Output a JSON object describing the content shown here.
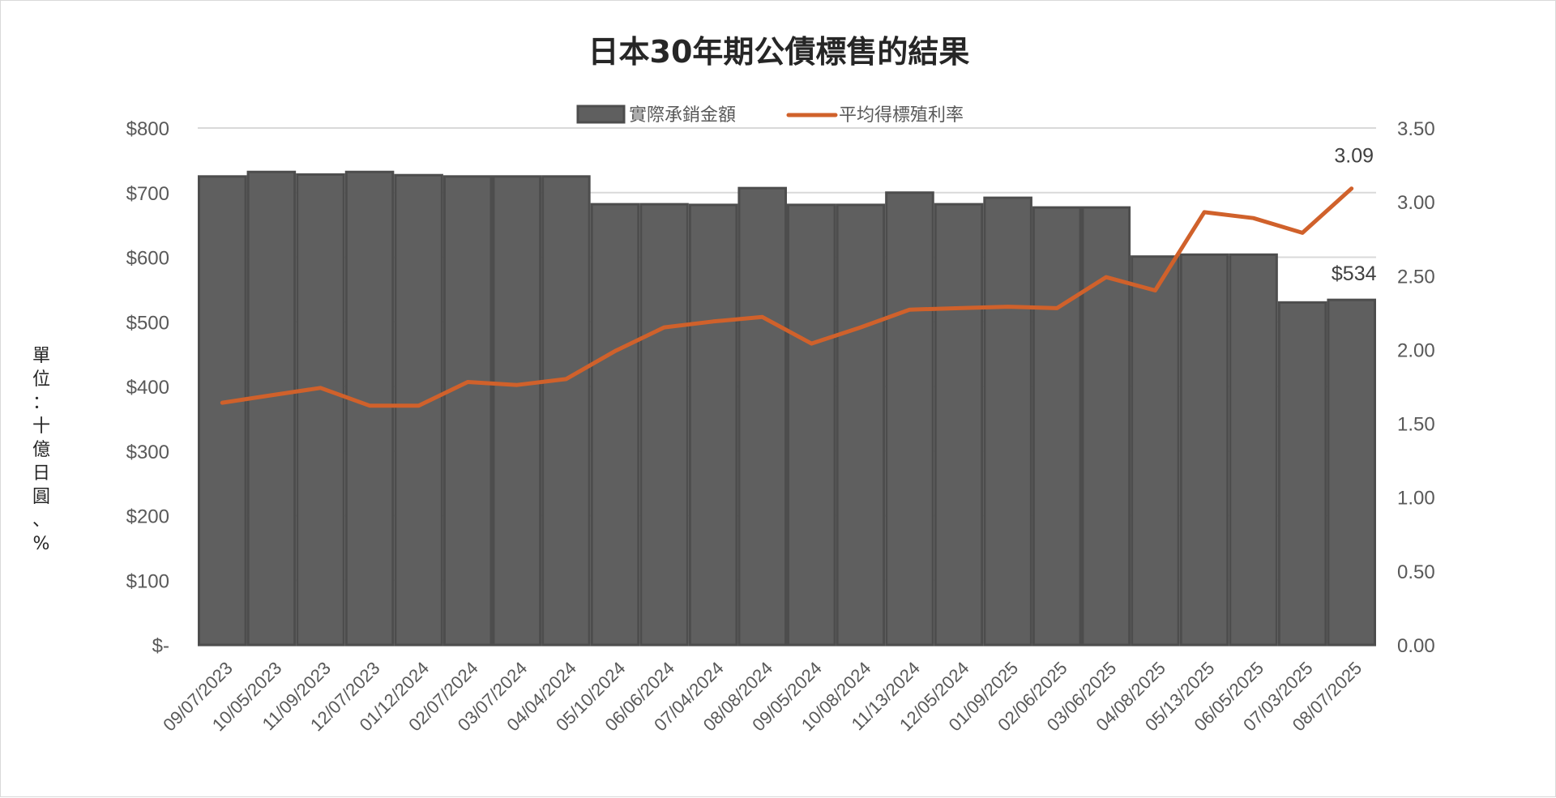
{
  "chart_data": {
    "type": "bar",
    "title": "日本30年期公債標售的結果",
    "ylabel": "單位：十億日圓、%",
    "categories": [
      "09/07/2023",
      "10/05/2023",
      "11/09/2023",
      "12/07/2023",
      "01/12/2024",
      "02/07/2024",
      "03/07/2024",
      "04/04/2024",
      "05/10/2024",
      "06/06/2024",
      "07/04/2024",
      "08/08/2024",
      "09/05/2024",
      "10/08/2024",
      "11/13/2024",
      "12/05/2024",
      "01/09/2025",
      "02/06/2025",
      "03/06/2025",
      "04/08/2025",
      "05/13/2025",
      "06/05/2025",
      "07/03/2025",
      "08/07/2025"
    ],
    "series": [
      {
        "name": "實際承銷金額",
        "type": "bar",
        "axis": "left",
        "color": "#5f5f5f",
        "values": [
          725,
          732,
          728,
          732,
          727,
          725,
          725,
          725,
          682,
          682,
          681,
          707,
          681,
          681,
          700,
          682,
          692,
          677,
          677,
          601,
          604,
          604,
          530,
          534
        ]
      },
      {
        "name": "平均得標殖利率",
        "type": "line",
        "axis": "right",
        "color": "#d0612b",
        "values": [
          1.64,
          1.69,
          1.74,
          1.62,
          1.62,
          1.78,
          1.76,
          1.8,
          1.99,
          2.15,
          2.19,
          2.22,
          2.04,
          2.15,
          2.27,
          2.28,
          2.29,
          2.28,
          2.49,
          2.4,
          2.93,
          2.89,
          2.79,
          3.09
        ]
      }
    ],
    "y_left": {
      "ylim": [
        0,
        800
      ],
      "ticks": [
        "$-",
        "$100",
        "$200",
        "$300",
        "$400",
        "$500",
        "$600",
        "$700",
        "$800"
      ]
    },
    "y_right": {
      "ylim": [
        0,
        3.5
      ],
      "ticks": [
        "0.00",
        "0.50",
        "1.00",
        "1.50",
        "2.00",
        "2.50",
        "3.00",
        "3.50"
      ]
    },
    "data_labels": [
      {
        "series": "實際承銷金額",
        "index": 23,
        "text": "$534"
      },
      {
        "series": "平均得標殖利率",
        "index": 23,
        "text": "3.09"
      }
    ],
    "grid": true,
    "legend": "top"
  }
}
